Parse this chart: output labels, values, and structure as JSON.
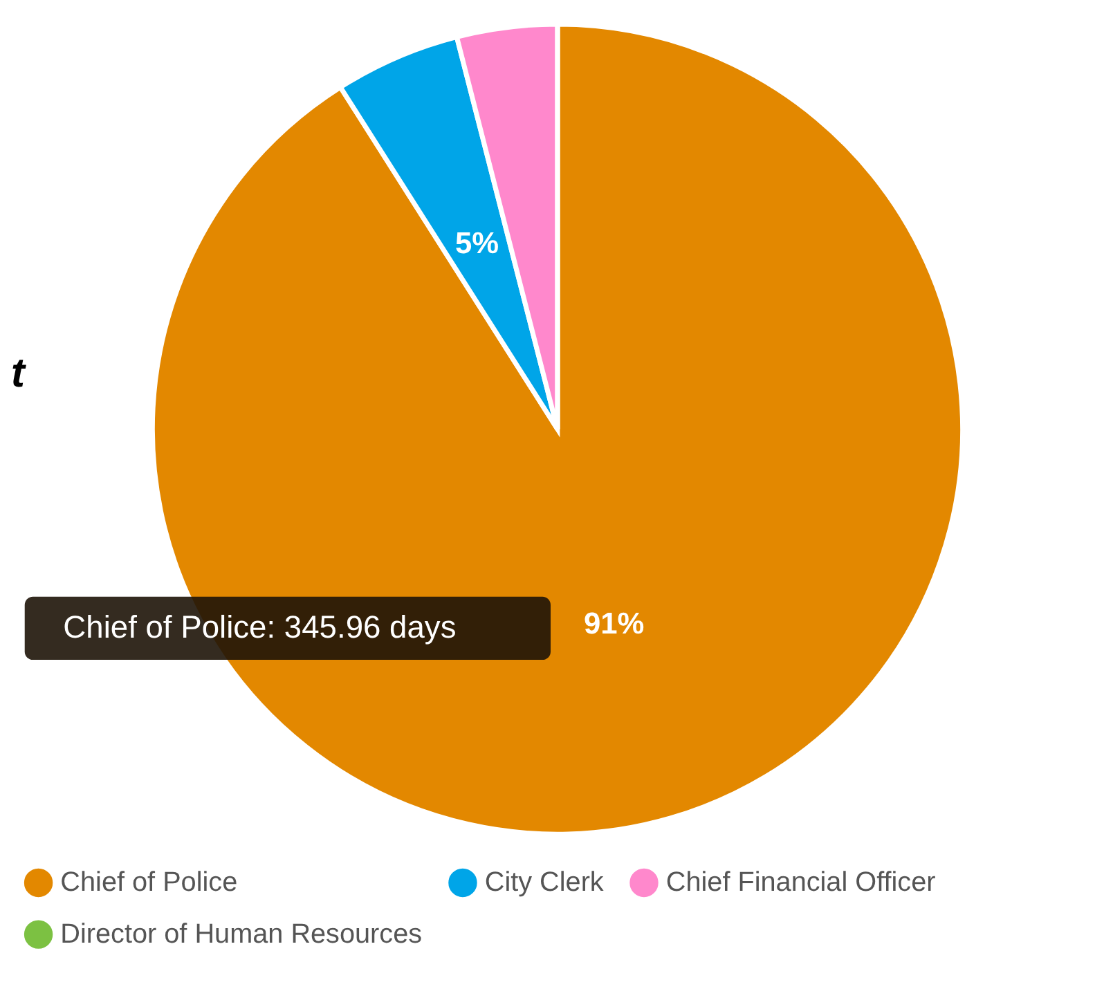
{
  "chart_data": {
    "type": "pie",
    "categories": [
      "Chief of Police",
      "City Clerk",
      "Chief Financial Officer",
      "Director of Human Resources"
    ],
    "values": [
      91,
      5,
      4,
      0
    ],
    "colors": [
      "#e38800",
      "#00a5e8",
      "#ff88cc",
      "#7cc142"
    ],
    "value_labels": [
      "91%",
      "5%",
      null,
      null
    ],
    "annotations": [
      "t",
      "Chief of Police: 345.96 days"
    ],
    "legend": "bottom"
  }
}
